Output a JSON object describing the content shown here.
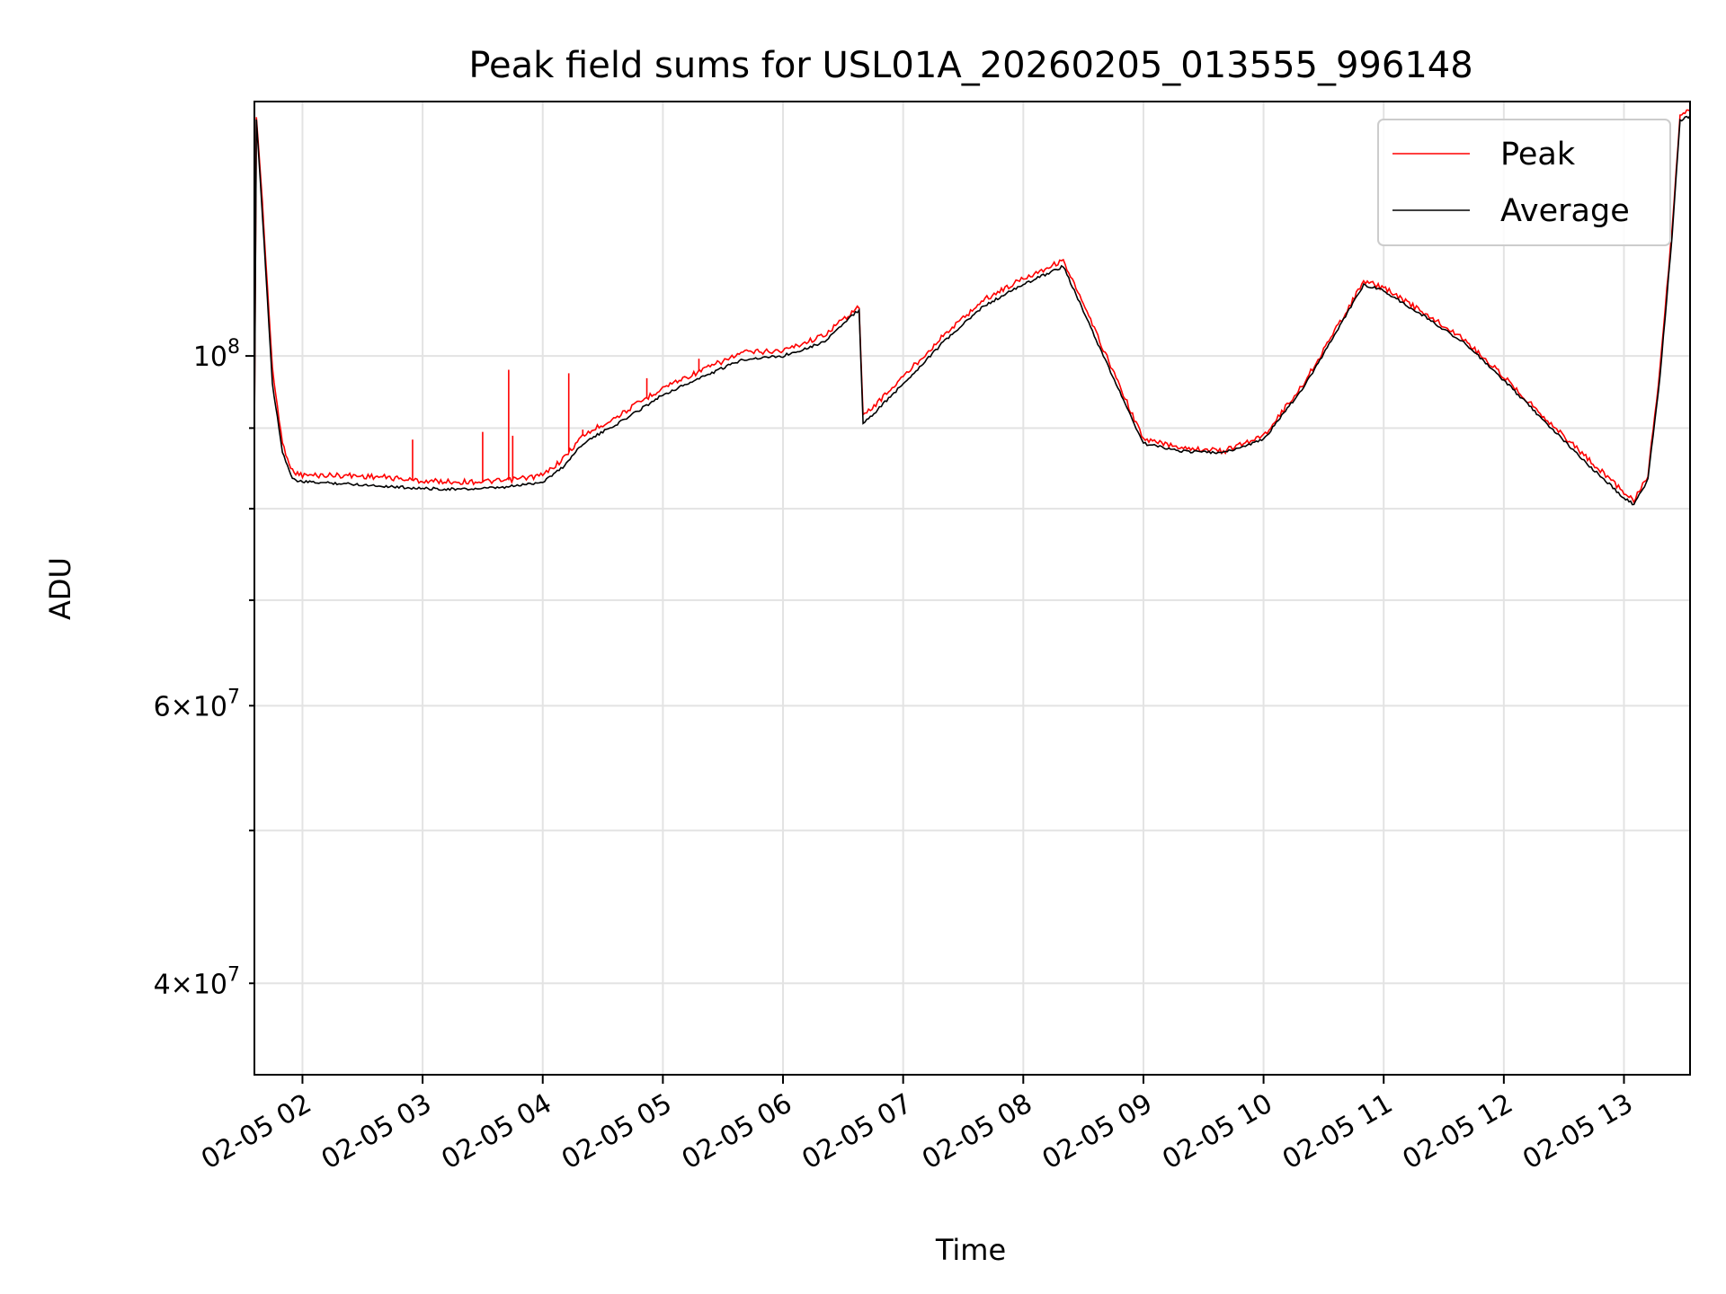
{
  "chart_data": {
    "type": "line",
    "title": "Peak field sums for USL01A_20260205_013555_996148",
    "xlabel": "Time",
    "ylabel": "ADU",
    "xscale": "time",
    "yscale": "log",
    "xlim": [
      "2026-02-05 01:36",
      "2026-02-05 13:33"
    ],
    "ylim": [
      35000000,
      145000000
    ],
    "x_ticks": [
      "2026-02-05 02:00",
      "2026-02-05 03:00",
      "2026-02-05 04:00",
      "2026-02-05 05:00",
      "2026-02-05 06:00",
      "2026-02-05 07:00",
      "2026-02-05 08:00",
      "2026-02-05 09:00",
      "2026-02-05 10:00",
      "2026-02-05 11:00",
      "2026-02-05 12:00",
      "2026-02-05 13:00"
    ],
    "x_tick_labels": [
      "02-05 02",
      "02-05 03",
      "02-05 04",
      "02-05 05",
      "02-05 06",
      "02-05 07",
      "02-05 08",
      "02-05 09",
      "02-05 10",
      "02-05 11",
      "02-05 12",
      "02-05 13"
    ],
    "y_major_ticks": [
      {
        "value": 100000000,
        "label": "10",
        "exp": "8"
      }
    ],
    "y_minor_ticks": [
      {
        "value": 40000000,
        "label": "4×10",
        "exp": "7"
      },
      {
        "value": 50000000,
        "label": "",
        "exp": ""
      },
      {
        "value": 60000000,
        "label": "6×10",
        "exp": "7"
      },
      {
        "value": 70000000,
        "label": "",
        "exp": ""
      },
      {
        "value": 80000000,
        "label": "",
        "exp": ""
      },
      {
        "value": 90000000,
        "label": "",
        "exp": ""
      }
    ],
    "grid": true,
    "legend_position": "top-right",
    "series": [
      {
        "name": "Peak",
        "color": "#ff0000",
        "x": [
          "2026-02-05 01:36",
          "2026-02-05 01:37",
          "2026-02-05 01:40",
          "2026-02-05 01:45",
          "2026-02-05 01:50",
          "2026-02-05 01:55",
          "2026-02-05 02:00",
          "2026-02-05 02:20",
          "2026-02-05 02:40",
          "2026-02-05 03:00",
          "2026-02-05 03:20",
          "2026-02-05 03:40",
          "2026-02-05 04:00",
          "2026-02-05 04:10",
          "2026-02-05 04:20",
          "2026-02-05 04:40",
          "2026-02-05 05:00",
          "2026-02-05 05:20",
          "2026-02-05 05:40",
          "2026-02-05 06:00",
          "2026-02-05 06:20",
          "2026-02-05 06:38",
          "2026-02-05 06:40",
          "2026-02-05 07:00",
          "2026-02-05 07:20",
          "2026-02-05 07:40",
          "2026-02-05 08:00",
          "2026-02-05 08:20",
          "2026-02-05 08:40",
          "2026-02-05 09:00",
          "2026-02-05 09:20",
          "2026-02-05 09:40",
          "2026-02-05 10:00",
          "2026-02-05 10:20",
          "2026-02-05 10:40",
          "2026-02-05 10:50",
          "2026-02-05 11:00",
          "2026-02-05 11:20",
          "2026-02-05 11:40",
          "2026-02-05 12:00",
          "2026-02-05 12:20",
          "2026-02-05 12:40",
          "2026-02-05 13:00",
          "2026-02-05 13:05",
          "2026-02-05 13:12",
          "2026-02-05 13:18",
          "2026-02-05 13:24",
          "2026-02-05 13:28",
          "2026-02-05 13:33"
        ],
        "y": [
          90000000,
          142000000,
          125000000,
          98000000,
          88000000,
          84500000,
          84000000,
          84000000,
          83800000,
          83300000,
          83200000,
          83300000,
          84000000,
          86000000,
          89000000,
          92000000,
          95500000,
          98000000,
          100500000,
          100800000,
          103000000,
          107500000,
          91500000,
          97000000,
          103000000,
          108500000,
          112000000,
          115000000,
          101000000,
          88500000,
          87500000,
          87000000,
          89000000,
          96000000,
          106000000,
          111500000,
          110500000,
          106500000,
          102500000,
          97000000,
          91500000,
          86500000,
          82000000,
          81000000,
          84000000,
          98000000,
          120000000,
          142000000,
          143000000
        ],
        "spikes": [
          {
            "x": "2026-02-05 02:55",
            "y": 88500000
          },
          {
            "x": "2026-02-05 03:30",
            "y": 89500000
          },
          {
            "x": "2026-02-05 03:45",
            "y": 89000000
          },
          {
            "x": "2026-02-05 03:43",
            "y": 98000000
          },
          {
            "x": "2026-02-05 04:13",
            "y": 97500000
          },
          {
            "x": "2026-02-05 04:20",
            "y": 89800000
          },
          {
            "x": "2026-02-05 04:52",
            "y": 96800000
          },
          {
            "x": "2026-02-05 05:18",
            "y": 99600000
          }
        ]
      },
      {
        "name": "Average",
        "color": "#000000",
        "x": [
          "2026-02-05 01:36",
          "2026-02-05 01:37",
          "2026-02-05 01:40",
          "2026-02-05 01:45",
          "2026-02-05 01:50",
          "2026-02-05 01:55",
          "2026-02-05 02:00",
          "2026-02-05 02:20",
          "2026-02-05 02:40",
          "2026-02-05 03:00",
          "2026-02-05 03:20",
          "2026-02-05 03:40",
          "2026-02-05 04:00",
          "2026-02-05 04:10",
          "2026-02-05 04:20",
          "2026-02-05 04:40",
          "2026-02-05 05:00",
          "2026-02-05 05:20",
          "2026-02-05 05:40",
          "2026-02-05 06:00",
          "2026-02-05 06:20",
          "2026-02-05 06:38",
          "2026-02-05 06:40",
          "2026-02-05 07:00",
          "2026-02-05 07:20",
          "2026-02-05 07:40",
          "2026-02-05 08:00",
          "2026-02-05 08:20",
          "2026-02-05 08:40",
          "2026-02-05 09:00",
          "2026-02-05 09:20",
          "2026-02-05 09:40",
          "2026-02-05 10:00",
          "2026-02-05 10:20",
          "2026-02-05 10:40",
          "2026-02-05 10:50",
          "2026-02-05 11:00",
          "2026-02-05 11:20",
          "2026-02-05 11:40",
          "2026-02-05 12:00",
          "2026-02-05 12:20",
          "2026-02-05 12:40",
          "2026-02-05 13:00",
          "2026-02-05 13:05",
          "2026-02-05 13:12",
          "2026-02-05 13:18",
          "2026-02-05 13:24",
          "2026-02-05 13:28",
          "2026-02-05 13:33"
        ],
        "y": [
          89000000,
          141000000,
          123000000,
          96000000,
          87000000,
          83500000,
          83200000,
          83000000,
          82700000,
          82400000,
          82300000,
          82500000,
          83200000,
          85000000,
          88000000,
          91000000,
          94500000,
          97000000,
          99500000,
          100000000,
          102000000,
          107000000,
          90500000,
          96000000,
          102000000,
          107500000,
          111000000,
          114000000,
          100000000,
          88000000,
          87000000,
          86800000,
          88500000,
          95500000,
          105500000,
          111000000,
          110000000,
          106000000,
          102000000,
          96500000,
          91000000,
          85800000,
          81300000,
          80500000,
          83500000,
          97000000,
          119000000,
          141000000,
          142000000
        ]
      }
    ]
  }
}
